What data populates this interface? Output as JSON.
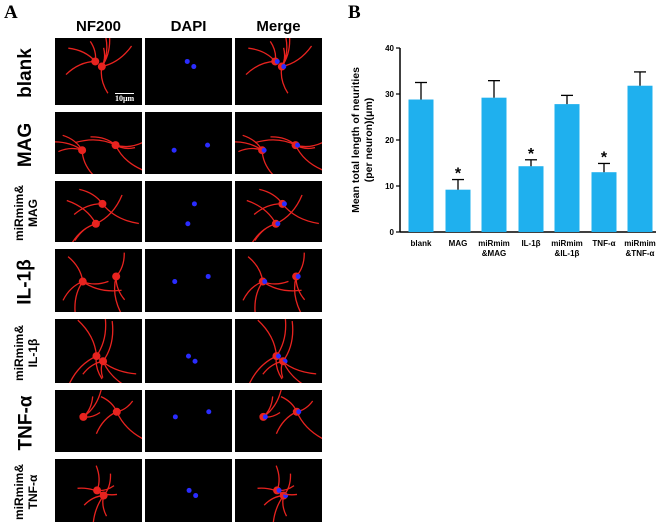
{
  "panel_a": {
    "letter": "A",
    "columns": [
      "NF200",
      "DAPI",
      "Merge"
    ],
    "rows": [
      "blank",
      "MAG",
      "miRmim&\nMAG",
      "IL-1β",
      "miRmim&\nIL-1β",
      "TNF-α",
      "miRmim&\nTNF-α"
    ],
    "scale_bar": "10μm"
  },
  "panel_b": {
    "letter": "B"
  },
  "colors": {
    "bar": "#1fb0ee",
    "neurite": "#e8231f",
    "nucleus": "#2a2cff"
  },
  "chart_data": {
    "type": "bar",
    "title": "",
    "xlabel": "",
    "ylabel": "Mean total length of neurities\n(per neuron)(μm)",
    "ylabel_lines": [
      "Mean total length of neurities",
      "(per neuron)(μm)"
    ],
    "ylim": [
      0,
      40
    ],
    "yticks": [
      "0",
      "10",
      "20",
      "30",
      "40"
    ],
    "categories": [
      "blank",
      "MAG",
      "miRmim\n&MAG",
      "IL-1β",
      "miRmim\n&IL-1β",
      "TNF-α",
      "miRmim\n&TNF-α"
    ],
    "category_lines": [
      [
        "blank"
      ],
      [
        "MAG"
      ],
      [
        "miRmim",
        "&MAG"
      ],
      [
        "IL-1β"
      ],
      [
        "miRmim",
        "&IL-1β"
      ],
      [
        "TNF-α"
      ],
      [
        "miRmim",
        "&TNF-α"
      ]
    ],
    "values": [
      28.8,
      9.2,
      29.2,
      14.3,
      27.8,
      13.0,
      31.8
    ],
    "errors": [
      3.7,
      2.2,
      3.7,
      1.4,
      1.9,
      1.9,
      3.0
    ],
    "significance": [
      "",
      "*",
      "",
      "*",
      "",
      "*",
      ""
    ],
    "grid": false
  }
}
